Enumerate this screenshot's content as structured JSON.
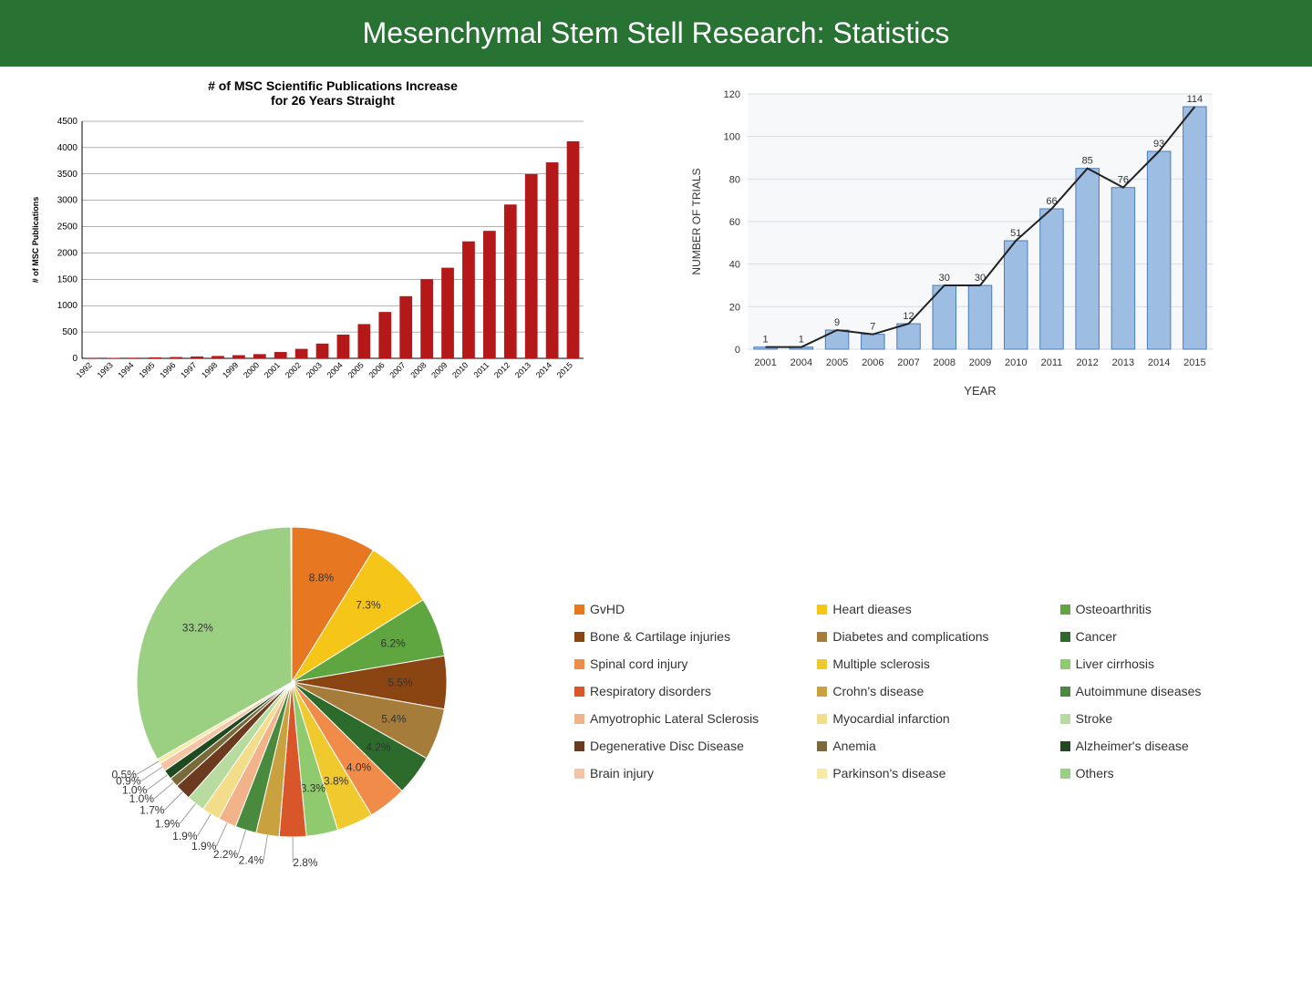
{
  "header": {
    "title": "Mesenchymal Stem Stell Research: Statistics"
  },
  "pub_chart": {
    "type": "bar",
    "title": "# of MSC Scientific Publications Increase\nfor 26 Years Straight",
    "ylabel": "# of MSC Publications",
    "ylim": [
      0,
      4500
    ],
    "ytick_step": 500,
    "years": [
      "1992",
      "1993",
      "1994",
      "1995",
      "1996",
      "1997",
      "1998",
      "1999",
      "2000",
      "2001",
      "2002",
      "2003",
      "2004",
      "2005",
      "2006",
      "2007",
      "2008",
      "2009",
      "2010",
      "2011",
      "2012",
      "2013",
      "2014",
      "2015"
    ],
    "values": [
      5,
      8,
      12,
      18,
      25,
      35,
      45,
      60,
      80,
      120,
      180,
      280,
      450,
      650,
      880,
      1180,
      1500,
      1720,
      2220,
      2420,
      2920,
      3500,
      3720,
      4120
    ],
    "bar_color": "#b41818",
    "grid_color": "#666666",
    "bg_color": "#ffffff",
    "label_fontsize": 10,
    "title_fontsize": 14
  },
  "trials_chart": {
    "type": "bar+line",
    "ylabel": "NUMBER OF TRIALS",
    "xlabel": "YEAR",
    "ylim": [
      0,
      120
    ],
    "ytick_step": 20,
    "years": [
      "2001",
      "2004",
      "2005",
      "2006",
      "2007",
      "2008",
      "2009",
      "2010",
      "2011",
      "2012",
      "2013",
      "2014",
      "2015"
    ],
    "values": [
      1,
      1,
      9,
      7,
      12,
      30,
      30,
      51,
      66,
      85,
      76,
      93,
      114
    ],
    "bar_color": "#9ebde3",
    "bar_border": "#4a7db8",
    "line_color": "#222222",
    "grid_color": "#d9dde2",
    "bg_color": "#f7f8fa",
    "label_fontsize": 11
  },
  "pie_chart": {
    "type": "pie",
    "slices": [
      {
        "label": "GvHD",
        "pct": 8.8,
        "color": "#e87722"
      },
      {
        "label": "Heart dieases",
        "pct": 7.3,
        "color": "#f5c518"
      },
      {
        "label": "Osteoarthritis",
        "pct": 6.2,
        "color": "#5fa641"
      },
      {
        "label": "Bone & Cartilage injuries",
        "pct": 5.5,
        "color": "#8a4513"
      },
      {
        "label": "Diabetes and complications",
        "pct": 5.4,
        "color": "#a67c3a"
      },
      {
        "label": "Cancer",
        "pct": 4.2,
        "color": "#2d6b2d"
      },
      {
        "label": "Spinal cord injury",
        "pct": 4.0,
        "color": "#f08b4a"
      },
      {
        "label": "Multiple sclerosis",
        "pct": 3.8,
        "color": "#f0c92f"
      },
      {
        "label": "Liver cirrhosis",
        "pct": 3.3,
        "color": "#8fcb6e"
      },
      {
        "label": "Respiratory disorders",
        "pct": 2.8,
        "color": "#d9562a"
      },
      {
        "label": "Crohn's disease",
        "pct": 2.4,
        "color": "#c9a23f"
      },
      {
        "label": "Autoimmune diseases",
        "pct": 2.2,
        "color": "#4a8a3f"
      },
      {
        "label": "Amyotrophic Lateral Sclerosis",
        "pct": 1.9,
        "color": "#f2b28a"
      },
      {
        "label": "Myocardial infarction",
        "pct": 1.9,
        "color": "#f3dc8a"
      },
      {
        "label": "Stroke",
        "pct": 1.9,
        "color": "#b8dca0"
      },
      {
        "label": "Degenerative Disc Disease",
        "pct": 1.7,
        "color": "#6b3a1f"
      },
      {
        "label": "Anemia",
        "pct": 1.0,
        "color": "#7a6a3a"
      },
      {
        "label": "Alzheimer's disease",
        "pct": 1.0,
        "color": "#1f4a1f"
      },
      {
        "label": "Brain injury",
        "pct": 0.9,
        "color": "#f5c4a4"
      },
      {
        "label": "Parkinson's disease",
        "pct": 0.5,
        "color": "#f7eaa4"
      },
      {
        "label": "Others",
        "pct": 33.2,
        "color": "#9bcf82"
      }
    ],
    "label_fontsize": 12,
    "label_color": "#333333"
  }
}
